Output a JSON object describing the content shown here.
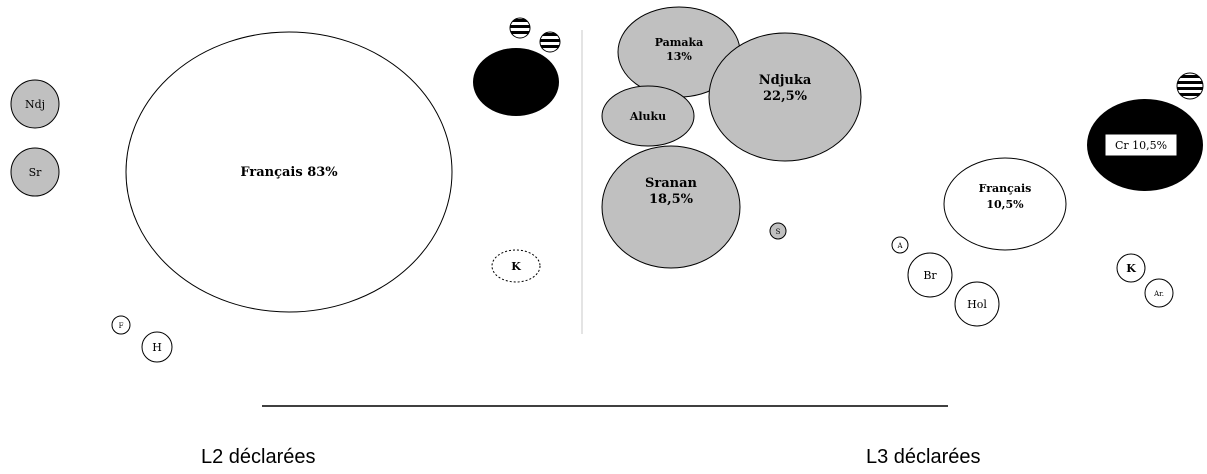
{
  "colors": {
    "grey": "#c0c0c0",
    "black": "#000000",
    "white": "#ffffff"
  },
  "captions": {
    "left": "L2 déclarées",
    "right": "L3 déclarées"
  },
  "l2": {
    "ndj": "Ndj",
    "sr": "Sr",
    "francais": "Français 83%",
    "k": "K",
    "f": "F",
    "h": "H"
  },
  "l3": {
    "pamaka_name": "Pamaka",
    "pamaka_pct": "13%",
    "ndjuka_name": "Ndjuka",
    "ndjuka_pct": "22,5%",
    "aluku": "Aluku",
    "sranan_name": "Sranan",
    "sranan_pct": "18,5%",
    "s": "S",
    "francais_name": "Français",
    "francais_pct": "10,5%",
    "creole": "Cr 10,5%",
    "a": "A",
    "br": "Br",
    "hol": "Hol",
    "k": "K",
    "ar": "Ar."
  }
}
